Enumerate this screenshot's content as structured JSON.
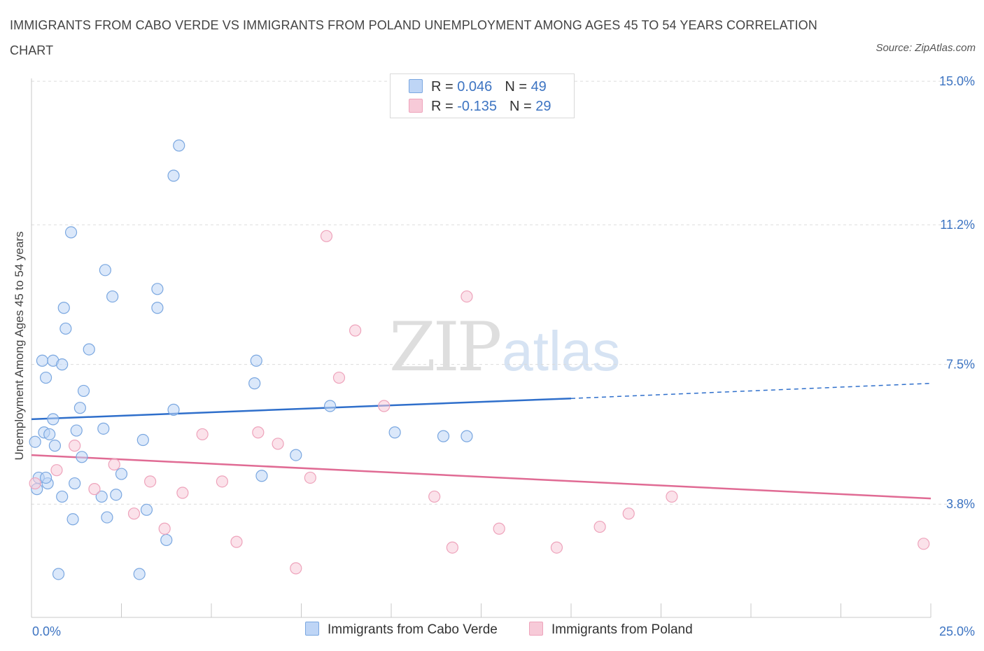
{
  "title": "IMMIGRANTS FROM CABO VERDE VS IMMIGRANTS FROM POLAND UNEMPLOYMENT AMONG AGES 45 TO 54 YEARS CORRELATION CHART",
  "source": "Source: ZipAtlas.com",
  "watermark": {
    "zip": "ZIP",
    "atlas": "atlas"
  },
  "legend": {
    "rows": [
      {
        "r_label": "R =",
        "r_value": "0.046",
        "n_label": "N =",
        "n_value": "49"
      },
      {
        "r_label": "R =",
        "r_value": "-0.135",
        "n_label": "N =",
        "n_value": "29"
      }
    ]
  },
  "chart_data": {
    "type": "scatter",
    "title": "IMMIGRANTS FROM CABO VERDE VS IMMIGRANTS FROM POLAND UNEMPLOYMENT AMONG AGES 45 TO 54 YEARS CORRELATION CHART",
    "xlabel": "",
    "ylabel": "Unemployment Among Ages 45 to 54 years",
    "xlim": [
      0,
      25
    ],
    "ylim": [
      0.8,
      15.3
    ],
    "x_tick_labels": [
      "0.0%",
      "25.0%"
    ],
    "y_ticks": [
      3.8,
      7.5,
      11.2,
      15.0
    ],
    "y_tick_labels": [
      "3.8%",
      "7.5%",
      "11.2%",
      "15.0%"
    ],
    "grid": true,
    "legend_position": "top-center",
    "colors": {
      "series1": "#7aa7e0",
      "series2": "#eea3bb",
      "line1": "#2f6fcb",
      "line2": "#e06b94",
      "tick": "#3d74c2"
    },
    "series": [
      {
        "name": "Immigrants from Cabo Verde",
        "R": 0.046,
        "N": 49,
        "trend": {
          "x0": 0,
          "y0": 6.05,
          "x1": 15.0,
          "y1": 6.6,
          "dash_x1": 25.0,
          "dash_y1": 7.0
        },
        "points": [
          [
            0.1,
            5.45
          ],
          [
            0.15,
            4.2
          ],
          [
            0.2,
            4.5
          ],
          [
            0.3,
            7.6
          ],
          [
            0.35,
            5.7
          ],
          [
            0.4,
            7.15
          ],
          [
            0.45,
            4.35
          ],
          [
            0.5,
            5.65
          ],
          [
            0.6,
            7.6
          ],
          [
            0.6,
            6.05
          ],
          [
            0.65,
            5.35
          ],
          [
            0.75,
            1.95
          ],
          [
            0.85,
            7.5
          ],
          [
            0.85,
            4.0
          ],
          [
            0.9,
            9.0
          ],
          [
            0.95,
            8.45
          ],
          [
            1.1,
            11.0
          ],
          [
            1.15,
            3.4
          ],
          [
            1.2,
            4.35
          ],
          [
            1.25,
            5.75
          ],
          [
            1.35,
            6.35
          ],
          [
            1.4,
            5.05
          ],
          [
            1.45,
            6.8
          ],
          [
            1.6,
            7.9
          ],
          [
            1.95,
            4.0
          ],
          [
            2.0,
            5.8
          ],
          [
            2.05,
            10.0
          ],
          [
            2.1,
            3.45
          ],
          [
            2.25,
            9.3
          ],
          [
            2.35,
            4.05
          ],
          [
            2.5,
            4.6
          ],
          [
            3.0,
            1.95
          ],
          [
            3.1,
            5.5
          ],
          [
            3.2,
            3.65
          ],
          [
            3.5,
            9.5
          ],
          [
            3.5,
            9.0
          ],
          [
            3.75,
            2.85
          ],
          [
            3.95,
            12.5
          ],
          [
            3.95,
            6.3
          ],
          [
            4.1,
            13.3
          ],
          [
            6.2,
            7.0
          ],
          [
            6.25,
            7.6
          ],
          [
            6.4,
            4.55
          ],
          [
            7.35,
            5.1
          ],
          [
            8.3,
            6.4
          ],
          [
            10.1,
            5.7
          ],
          [
            11.45,
            5.6
          ],
          [
            12.1,
            5.6
          ],
          [
            0.4,
            4.5
          ]
        ]
      },
      {
        "name": "Immigrants from Poland",
        "R": -0.135,
        "N": 29,
        "trend": {
          "x0": 0,
          "y0": 5.1,
          "x1": 25.0,
          "y1": 3.95
        },
        "points": [
          [
            0.1,
            4.35
          ],
          [
            0.7,
            4.7
          ],
          [
            1.2,
            5.35
          ],
          [
            1.75,
            4.2
          ],
          [
            2.3,
            4.85
          ],
          [
            2.85,
            3.55
          ],
          [
            3.3,
            4.4
          ],
          [
            3.7,
            3.15
          ],
          [
            4.2,
            4.1
          ],
          [
            4.75,
            5.65
          ],
          [
            5.3,
            4.4
          ],
          [
            5.7,
            2.8
          ],
          [
            6.3,
            5.7
          ],
          [
            6.85,
            5.4
          ],
          [
            7.35,
            2.1
          ],
          [
            7.75,
            4.5
          ],
          [
            8.2,
            10.9
          ],
          [
            8.55,
            7.15
          ],
          [
            9.0,
            8.4
          ],
          [
            9.8,
            6.4
          ],
          [
            11.2,
            4.0
          ],
          [
            11.7,
            2.65
          ],
          [
            12.1,
            9.3
          ],
          [
            13.0,
            3.15
          ],
          [
            14.6,
            2.65
          ],
          [
            15.8,
            3.2
          ],
          [
            16.6,
            3.55
          ],
          [
            17.8,
            4.0
          ],
          [
            24.8,
            2.75
          ]
        ]
      }
    ]
  }
}
